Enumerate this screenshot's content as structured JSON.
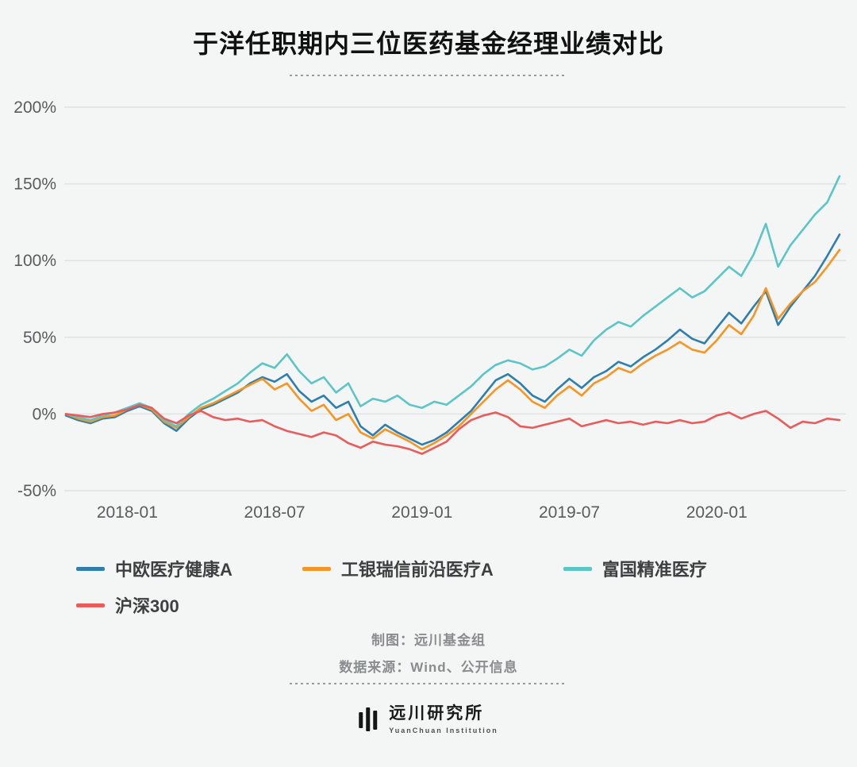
{
  "page": {
    "title": "于洋任职期内三位医药基金经理业绩对比",
    "background": "#f4f5f5"
  },
  "chart_data": {
    "type": "line",
    "title": "于洋任职期内三位医药基金经理业绩对比",
    "xlabel": "",
    "ylabel": "",
    "x_unit": "months relative to 2018-01",
    "xlim": [
      -2.5,
      29
    ],
    "ylim": [
      -50,
      200
    ],
    "grid": "horizontal",
    "legend_position": "bottom",
    "x_start": -2.5,
    "x_step": 0.5,
    "x_tick_positions": [
      0,
      6,
      12,
      18,
      24
    ],
    "x_tick_labels": [
      "2018-01",
      "2018-07",
      "2019-01",
      "2019-07",
      "2020-01"
    ],
    "y_ticks": [
      200,
      150,
      100,
      50,
      0,
      -50
    ],
    "y_tick_suffix": "%",
    "series": [
      {
        "name": "中欧医疗健康A",
        "color": "#2e7fae",
        "values": [
          -1,
          -4,
          -6,
          -3,
          -2,
          2,
          5,
          2,
          -6,
          -11,
          -3,
          3,
          6,
          10,
          14,
          20,
          24,
          21,
          26,
          15,
          8,
          12,
          4,
          8,
          -8,
          -14,
          -7,
          -12,
          -16,
          -20,
          -17,
          -12,
          -5,
          2,
          12,
          22,
          26,
          20,
          12,
          8,
          16,
          23,
          17,
          24,
          28,
          34,
          31,
          37,
          42,
          48,
          55,
          49,
          46,
          56,
          66,
          59,
          70,
          80,
          58,
          70,
          80,
          90,
          103,
          117
        ]
      },
      {
        "name": "工银瑞信前沿医疗A",
        "color": "#f59523",
        "values": [
          0,
          -3,
          -5,
          -2,
          -1,
          3,
          6,
          3,
          -5,
          -9,
          -2,
          4,
          7,
          11,
          15,
          19,
          23,
          16,
          20,
          10,
          2,
          6,
          -4,
          0,
          -12,
          -16,
          -10,
          -14,
          -18,
          -23,
          -19,
          -14,
          -8,
          0,
          8,
          16,
          22,
          16,
          8,
          4,
          12,
          18,
          12,
          20,
          24,
          30,
          27,
          33,
          38,
          42,
          47,
          42,
          40,
          48,
          58,
          52,
          64,
          82,
          62,
          72,
          80,
          86,
          96,
          107
        ]
      },
      {
        "name": "富国精准医疗",
        "color": "#5cc5c6",
        "values": [
          0,
          -2,
          -4,
          -1,
          1,
          4,
          7,
          4,
          -4,
          -8,
          0,
          6,
          10,
          15,
          20,
          27,
          33,
          30,
          39,
          28,
          20,
          24,
          14,
          20,
          5,
          10,
          8,
          12,
          6,
          4,
          8,
          6,
          12,
          18,
          26,
          32,
          35,
          33,
          29,
          31,
          36,
          42,
          38,
          48,
          55,
          60,
          57,
          64,
          70,
          76,
          82,
          76,
          80,
          88,
          96,
          90,
          104,
          124,
          96,
          110,
          120,
          130,
          138,
          155
        ]
      },
      {
        "name": "沪深300",
        "color": "#e85c5c",
        "values": [
          0,
          -1,
          -2,
          0,
          1,
          3,
          6,
          4,
          -3,
          -6,
          -1,
          2,
          -2,
          -4,
          -3,
          -5,
          -4,
          -8,
          -11,
          -13,
          -15,
          -12,
          -14,
          -19,
          -22,
          -18,
          -20,
          -21,
          -23,
          -26,
          -22,
          -18,
          -10,
          -4,
          -1,
          1,
          -2,
          -8,
          -9,
          -7,
          -5,
          -3,
          -8,
          -6,
          -4,
          -6,
          -5,
          -7,
          -5,
          -6,
          -4,
          -6,
          -5,
          -1,
          1,
          -3,
          0,
          2,
          -3,
          -9,
          -5,
          -6,
          -3,
          -4
        ]
      }
    ]
  },
  "legend": {
    "rows": [
      [
        {
          "label": "中欧医疗健康A",
          "color": "#2e7fae"
        },
        {
          "label": "工银瑞信前沿医疗A",
          "color": "#f59523"
        },
        {
          "label": "富国精准医疗",
          "color": "#5cc5c6"
        }
      ],
      [
        {
          "label": "沪深300",
          "color": "#e85c5c"
        }
      ]
    ]
  },
  "credits": {
    "maker": "制图：远川基金组",
    "source": "数据来源：Wind、公开信息"
  },
  "footer": {
    "logo_text": "远川研究所",
    "logo_subtext": "YuanChuan Institution"
  }
}
